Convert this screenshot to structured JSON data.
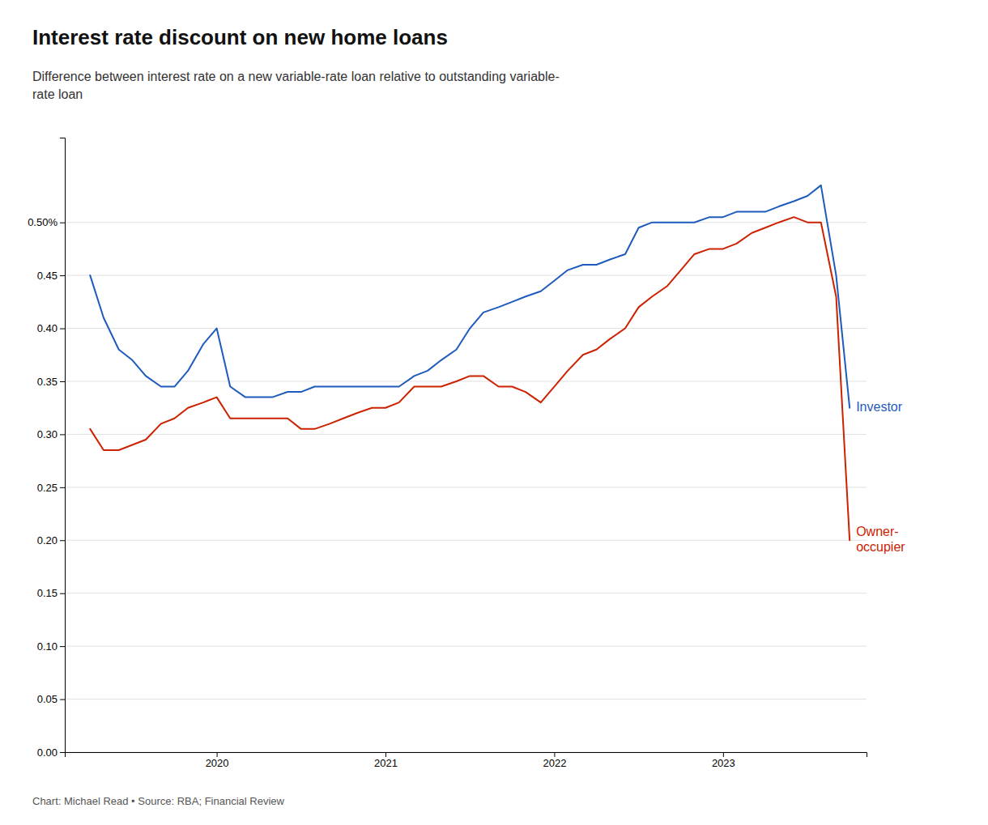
{
  "chart_data": {
    "type": "line",
    "title": "Interest rate discount on new home loans",
    "subtitle": "Difference between interest rate on a new variable-rate loan relative to outstanding variable-\nrate loan",
    "source": "Chart: Michael Read • Source: RBA; Financial Review",
    "x": [
      2019.25,
      2019.33,
      2019.42,
      2019.5,
      2019.58,
      2019.67,
      2019.75,
      2019.83,
      2019.92,
      2020.0,
      2020.08,
      2020.17,
      2020.25,
      2020.33,
      2020.42,
      2020.5,
      2020.58,
      2020.67,
      2020.75,
      2020.83,
      2020.92,
      2021.0,
      2021.08,
      2021.17,
      2021.25,
      2021.33,
      2021.42,
      2021.5,
      2021.58,
      2021.67,
      2021.75,
      2021.83,
      2021.92,
      2022.0,
      2022.08,
      2022.17,
      2022.25,
      2022.33,
      2022.42,
      2022.5,
      2022.58,
      2022.67,
      2022.75,
      2022.83,
      2022.92,
      2023.0,
      2023.08,
      2023.17,
      2023.25,
      2023.33,
      2023.42,
      2023.5,
      2023.58,
      2023.67,
      2023.75
    ],
    "series": [
      {
        "name": "Investor",
        "color": "#1f5bbd",
        "values": [
          0.45,
          0.41,
          0.38,
          0.37,
          0.355,
          0.345,
          0.345,
          0.36,
          0.385,
          0.4,
          0.345,
          0.335,
          0.335,
          0.335,
          0.34,
          0.34,
          0.345,
          0.345,
          0.345,
          0.345,
          0.345,
          0.345,
          0.345,
          0.355,
          0.36,
          0.37,
          0.38,
          0.4,
          0.415,
          0.42,
          0.425,
          0.43,
          0.435,
          0.445,
          0.455,
          0.46,
          0.46,
          0.465,
          0.47,
          0.495,
          0.5,
          0.5,
          0.5,
          0.5,
          0.505,
          0.505,
          0.51,
          0.51,
          0.51,
          0.515,
          0.52,
          0.525,
          0.535,
          0.45,
          0.325
        ]
      },
      {
        "name": "Owner-\noccupier",
        "color": "#cc2200",
        "values": [
          0.305,
          0.285,
          0.285,
          0.29,
          0.295,
          0.31,
          0.315,
          0.325,
          0.33,
          0.335,
          0.315,
          0.315,
          0.315,
          0.315,
          0.315,
          0.305,
          0.305,
          0.31,
          0.315,
          0.32,
          0.325,
          0.325,
          0.33,
          0.345,
          0.345,
          0.345,
          0.35,
          0.355,
          0.355,
          0.345,
          0.345,
          0.34,
          0.33,
          0.345,
          0.36,
          0.375,
          0.38,
          0.39,
          0.4,
          0.42,
          0.43,
          0.44,
          0.455,
          0.47,
          0.475,
          0.475,
          0.48,
          0.49,
          0.495,
          0.5,
          0.505,
          0.5,
          0.5,
          0.43,
          0.2
        ]
      }
    ],
    "xlim": [
      2019.1,
      2023.85
    ],
    "xticks": [
      2020,
      2021,
      2022,
      2023
    ],
    "ylim": [
      0.0,
      0.58
    ],
    "yticks": [
      {
        "value": 0.0,
        "label": "0.00"
      },
      0.05,
      {
        "value": 0.1,
        "label": "0.10"
      },
      0.15,
      {
        "value": 0.2,
        "label": "0.20"
      },
      0.25,
      {
        "value": 0.3,
        "label": "0.30"
      },
      0.35,
      {
        "value": 0.4,
        "label": "0.40"
      },
      0.45,
      {
        "value": 0.5,
        "label": "0.50%"
      }
    ],
    "grid": true
  }
}
